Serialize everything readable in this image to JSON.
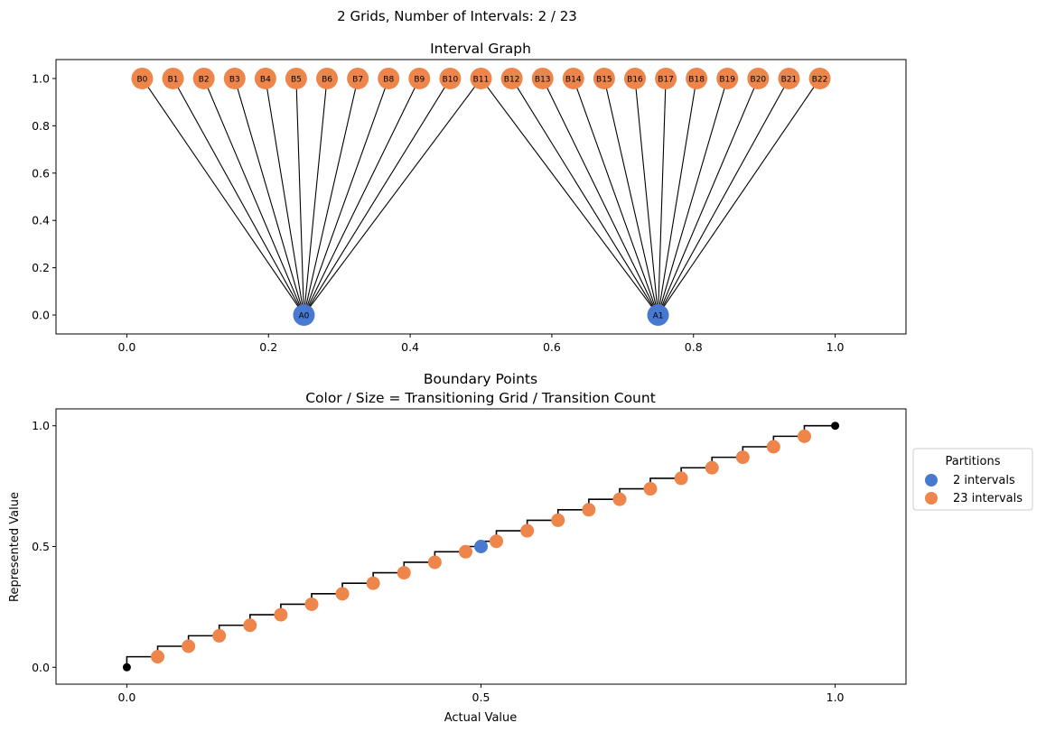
{
  "figure_title": "2 Grids, Number of Intervals: 2 / 23",
  "colors": {
    "grid_a": "#4878cf",
    "grid_b": "#ee854a",
    "edge": "#000000",
    "endpoint": "#000000"
  },
  "chart_data": [
    {
      "type": "graph",
      "title": "Interval Graph",
      "xlim": [
        -0.1,
        1.1
      ],
      "ylim": [
        -0.08,
        1.08
      ],
      "x_ticks": [
        "0.0",
        "0.2",
        "0.4",
        "0.6",
        "0.8",
        "1.0"
      ],
      "y_ticks": [
        "0.0",
        "0.2",
        "0.4",
        "0.6",
        "0.8",
        "1.0"
      ],
      "grid": false,
      "nodes_a": [
        {
          "label": "A0",
          "x": 0.25,
          "y": 0
        },
        {
          "label": "A1",
          "x": 0.75,
          "y": 0
        }
      ],
      "nodes_b": [
        {
          "label": "B0",
          "x": 0.0217,
          "y": 1
        },
        {
          "label": "B1",
          "x": 0.0652,
          "y": 1
        },
        {
          "label": "B2",
          "x": 0.1087,
          "y": 1
        },
        {
          "label": "B3",
          "x": 0.1522,
          "y": 1
        },
        {
          "label": "B4",
          "x": 0.1957,
          "y": 1
        },
        {
          "label": "B5",
          "x": 0.2391,
          "y": 1
        },
        {
          "label": "B6",
          "x": 0.2826,
          "y": 1
        },
        {
          "label": "B7",
          "x": 0.3261,
          "y": 1
        },
        {
          "label": "B8",
          "x": 0.3696,
          "y": 1
        },
        {
          "label": "B9",
          "x": 0.413,
          "y": 1
        },
        {
          "label": "B10",
          "x": 0.4565,
          "y": 1
        },
        {
          "label": "B11",
          "x": 0.5,
          "y": 1
        },
        {
          "label": "B12",
          "x": 0.5435,
          "y": 1
        },
        {
          "label": "B13",
          "x": 0.587,
          "y": 1
        },
        {
          "label": "B14",
          "x": 0.6304,
          "y": 1
        },
        {
          "label": "B15",
          "x": 0.6739,
          "y": 1
        },
        {
          "label": "B16",
          "x": 0.7174,
          "y": 1
        },
        {
          "label": "B17",
          "x": 0.7609,
          "y": 1
        },
        {
          "label": "B18",
          "x": 0.8043,
          "y": 1
        },
        {
          "label": "B19",
          "x": 0.8478,
          "y": 1
        },
        {
          "label": "B20",
          "x": 0.8913,
          "y": 1
        },
        {
          "label": "B21",
          "x": 0.9348,
          "y": 1
        },
        {
          "label": "B22",
          "x": 0.9783,
          "y": 1
        }
      ],
      "edges": [
        [
          "A0",
          "B0"
        ],
        [
          "A0",
          "B1"
        ],
        [
          "A0",
          "B2"
        ],
        [
          "A0",
          "B3"
        ],
        [
          "A0",
          "B4"
        ],
        [
          "A0",
          "B5"
        ],
        [
          "A0",
          "B6"
        ],
        [
          "A0",
          "B7"
        ],
        [
          "A0",
          "B8"
        ],
        [
          "A0",
          "B9"
        ],
        [
          "A0",
          "B10"
        ],
        [
          "A0",
          "B11"
        ],
        [
          "A1",
          "B11"
        ],
        [
          "A1",
          "B12"
        ],
        [
          "A1",
          "B13"
        ],
        [
          "A1",
          "B14"
        ],
        [
          "A1",
          "B15"
        ],
        [
          "A1",
          "B16"
        ],
        [
          "A1",
          "B17"
        ],
        [
          "A1",
          "B18"
        ],
        [
          "A1",
          "B19"
        ],
        [
          "A1",
          "B20"
        ],
        [
          "A1",
          "B21"
        ],
        [
          "A1",
          "B22"
        ]
      ]
    },
    {
      "type": "scatter",
      "title": "Boundary Points",
      "subtitle": "Color / Size = Transitioning Grid / Transition Count",
      "xlabel": "Actual Value",
      "ylabel": "Represented Value",
      "xlim": [
        -0.1,
        1.1
      ],
      "ylim": [
        -0.07,
        1.07
      ],
      "x_ticks": [
        "0.0",
        "0.5",
        "1.0"
      ],
      "y_ticks": [
        "0.0",
        "0.5",
        "1.0"
      ],
      "grid": false,
      "legend": {
        "title": "Partitions",
        "placement": "outside-right",
        "entries": [
          "2 intervals",
          "23 intervals"
        ]
      },
      "endpoints": [
        {
          "x": 0.0,
          "y": 0.0
        },
        {
          "x": 1.0,
          "y": 1.0
        }
      ],
      "series": [
        {
          "name": "2 intervals",
          "x": [
            0.5
          ],
          "y": [
            0.5
          ]
        },
        {
          "name": "23 intervals",
          "x": [
            0.0435,
            0.087,
            0.1304,
            0.1739,
            0.2174,
            0.2609,
            0.3043,
            0.3478,
            0.3913,
            0.4348,
            0.4783,
            0.5217,
            0.5652,
            0.6087,
            0.6522,
            0.6957,
            0.7391,
            0.7826,
            0.8261,
            0.8696,
            0.913,
            0.9565
          ],
          "y": [
            0.0435,
            0.087,
            0.1304,
            0.1739,
            0.2174,
            0.2609,
            0.3043,
            0.3478,
            0.3913,
            0.4348,
            0.4783,
            0.5217,
            0.5652,
            0.6087,
            0.6522,
            0.6957,
            0.7391,
            0.7826,
            0.8261,
            0.8696,
            0.913,
            0.9565
          ]
        }
      ],
      "step_line": {
        "x": [
          0.0,
          0.0435,
          0.087,
          0.1304,
          0.1739,
          0.2174,
          0.2609,
          0.3043,
          0.3478,
          0.3913,
          0.4348,
          0.4783,
          0.5,
          0.5217,
          0.5652,
          0.6087,
          0.6522,
          0.6957,
          0.7391,
          0.7826,
          0.8261,
          0.8696,
          0.913,
          0.9565,
          1.0
        ],
        "y": [
          0.0,
          0.0435,
          0.087,
          0.1304,
          0.1739,
          0.2174,
          0.2609,
          0.3043,
          0.3478,
          0.3913,
          0.4348,
          0.4783,
          0.5,
          0.5217,
          0.5652,
          0.6087,
          0.6522,
          0.6957,
          0.7391,
          0.7826,
          0.8261,
          0.8696,
          0.913,
          0.9565,
          1.0
        ]
      }
    }
  ]
}
